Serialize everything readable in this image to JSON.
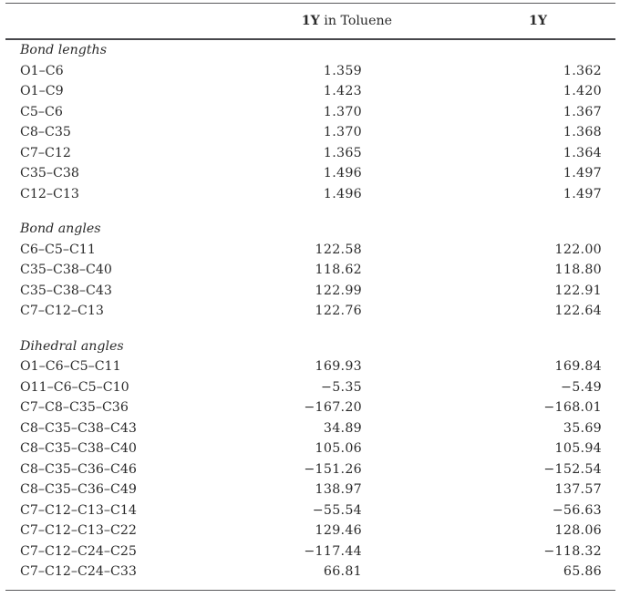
{
  "table": {
    "header": {
      "col2": {
        "bold": "1Y",
        "rest": " in Toluene"
      },
      "col3": {
        "bold": "1Y",
        "rest": ""
      }
    },
    "sections": [
      {
        "label": "Bond lengths",
        "rows": [
          {
            "name": "O1–C6",
            "toluene": "1.359",
            "gas": "1.362"
          },
          {
            "name": "O1–C9",
            "toluene": "1.423",
            "gas": "1.420"
          },
          {
            "name": "C5–C6",
            "toluene": "1.370",
            "gas": "1.367"
          },
          {
            "name": "C8–C35",
            "toluene": "1.370",
            "gas": "1.368"
          },
          {
            "name": "C7–C12",
            "toluene": "1.365",
            "gas": "1.364"
          },
          {
            "name": "C35–C38",
            "toluene": "1.496",
            "gas": "1.497"
          },
          {
            "name": "C12–C13",
            "toluene": "1.496",
            "gas": "1.497"
          }
        ]
      },
      {
        "label": "Bond angles",
        "rows": [
          {
            "name": "C6–C5–C11",
            "toluene": "122.58",
            "gas": "122.00"
          },
          {
            "name": "C35–C38–C40",
            "toluene": "118.62",
            "gas": "118.80"
          },
          {
            "name": "C35–C38–C43",
            "toluene": "122.99",
            "gas": "122.91"
          },
          {
            "name": "C7–C12–C13",
            "toluene": "122.76",
            "gas": "122.64"
          }
        ]
      },
      {
        "label": "Dihedral angles",
        "rows": [
          {
            "name": "O1–C6–C5–C11",
            "toluene": "169.93",
            "gas": "169.84"
          },
          {
            "name": "O11–C6–C5–C10",
            "toluene": "−5.35",
            "gas": "−5.49"
          },
          {
            "name": "C7–C8–C35–C36",
            "toluene": "−167.20",
            "gas": "−168.01"
          },
          {
            "name": "C8–C35–C38–C43",
            "toluene": "34.89",
            "gas": "35.69"
          },
          {
            "name": "C8–C35–C38–C40",
            "toluene": "105.06",
            "gas": "105.94"
          },
          {
            "name": "C8–C35–C36–C46",
            "toluene": "−151.26",
            "gas": "−152.54"
          },
          {
            "name": "C8–C35–C36–C49",
            "toluene": "138.97",
            "gas": "137.57"
          },
          {
            "name": "C7–C12–C13–C14",
            "toluene": "−55.54",
            "gas": "−56.63"
          },
          {
            "name": "C7–C12–C13–C22",
            "toluene": "129.46",
            "gas": "128.06"
          },
          {
            "name": "C7–C12–C24–C25",
            "toluene": "−117.44",
            "gas": "−118.32"
          },
          {
            "name": "C7–C12–C24–C33",
            "toluene": "66.81",
            "gas": "65.86"
          }
        ]
      }
    ]
  },
  "colors": {
    "background": "#ffffff",
    "text": "#2b2b2b",
    "rule_light": "#58585c",
    "rule_heavy": "#47474b"
  }
}
